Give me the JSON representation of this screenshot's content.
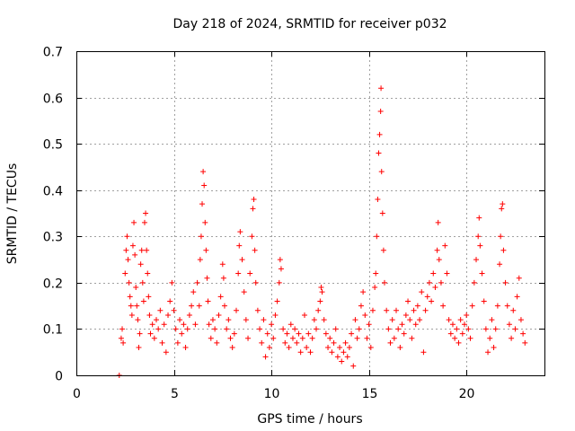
{
  "chart_data": {
    "type": "scatter",
    "title": "Day 218 of 2024, SRMTID for receiver p032",
    "xlabel": "GPS time / hours",
    "ylabel": "SRMTID / TECUs",
    "xlim": [
      0,
      24
    ],
    "ylim": [
      0,
      0.7
    ],
    "x_ticks": [
      0,
      5,
      10,
      15,
      20
    ],
    "x_tick_labels": [
      "0",
      "5",
      "10",
      "15",
      "20"
    ],
    "y_ticks": [
      0,
      0.1,
      0.2,
      0.3,
      0.4,
      0.5,
      0.6,
      0.7
    ],
    "y_tick_labels": [
      "0",
      "0.1",
      "0.2",
      "0.3",
      "0.4",
      "0.5",
      "0.6",
      "0.7"
    ],
    "grid": true,
    "marker": "plus",
    "color": "#ff0000",
    "series": [
      {
        "name": "SRMTID",
        "points": [
          [
            2.2,
            0.0
          ],
          [
            2.3,
            0.08
          ],
          [
            2.35,
            0.1
          ],
          [
            2.4,
            0.07
          ],
          [
            2.5,
            0.22
          ],
          [
            2.55,
            0.27
          ],
          [
            2.6,
            0.3
          ],
          [
            2.65,
            0.25
          ],
          [
            2.7,
            0.2
          ],
          [
            2.75,
            0.17
          ],
          [
            2.8,
            0.15
          ],
          [
            2.85,
            0.13
          ],
          [
            2.9,
            0.28
          ],
          [
            2.95,
            0.33
          ],
          [
            3.0,
            0.26
          ],
          [
            3.05,
            0.19
          ],
          [
            3.1,
            0.15
          ],
          [
            3.15,
            0.12
          ],
          [
            3.2,
            0.06
          ],
          [
            3.25,
            0.09
          ],
          [
            3.3,
            0.24
          ],
          [
            3.35,
            0.27
          ],
          [
            3.4,
            0.2
          ],
          [
            3.45,
            0.16
          ],
          [
            3.5,
            0.33
          ],
          [
            3.55,
            0.35
          ],
          [
            3.6,
            0.27
          ],
          [
            3.65,
            0.22
          ],
          [
            3.7,
            0.17
          ],
          [
            3.75,
            0.13
          ],
          [
            3.8,
            0.09
          ],
          [
            3.9,
            0.11
          ],
          [
            4.0,
            0.08
          ],
          [
            4.1,
            0.12
          ],
          [
            4.2,
            0.1
          ],
          [
            4.3,
            0.14
          ],
          [
            4.4,
            0.07
          ],
          [
            4.5,
            0.11
          ],
          [
            4.6,
            0.05
          ],
          [
            4.7,
            0.13
          ],
          [
            4.8,
            0.16
          ],
          [
            4.9,
            0.2
          ],
          [
            5.0,
            0.14
          ],
          [
            5.1,
            0.1
          ],
          [
            5.2,
            0.07
          ],
          [
            5.3,
            0.12
          ],
          [
            5.4,
            0.09
          ],
          [
            5.5,
            0.11
          ],
          [
            5.6,
            0.06
          ],
          [
            5.7,
            0.1
          ],
          [
            5.8,
            0.13
          ],
          [
            5.9,
            0.15
          ],
          [
            6.0,
            0.18
          ],
          [
            6.1,
            0.11
          ],
          [
            6.2,
            0.2
          ],
          [
            6.3,
            0.15
          ],
          [
            6.35,
            0.25
          ],
          [
            6.4,
            0.3
          ],
          [
            6.45,
            0.37
          ],
          [
            6.5,
            0.44
          ],
          [
            6.55,
            0.41
          ],
          [
            6.6,
            0.33
          ],
          [
            6.65,
            0.27
          ],
          [
            6.7,
            0.21
          ],
          [
            6.75,
            0.16
          ],
          [
            6.8,
            0.11
          ],
          [
            6.9,
            0.08
          ],
          [
            7.0,
            0.12
          ],
          [
            7.1,
            0.1
          ],
          [
            7.2,
            0.07
          ],
          [
            7.3,
            0.13
          ],
          [
            7.4,
            0.17
          ],
          [
            7.5,
            0.24
          ],
          [
            7.55,
            0.21
          ],
          [
            7.6,
            0.15
          ],
          [
            7.7,
            0.1
          ],
          [
            7.8,
            0.12
          ],
          [
            7.9,
            0.08
          ],
          [
            8.0,
            0.06
          ],
          [
            8.1,
            0.09
          ],
          [
            8.2,
            0.14
          ],
          [
            8.3,
            0.22
          ],
          [
            8.35,
            0.28
          ],
          [
            8.4,
            0.31
          ],
          [
            8.5,
            0.25
          ],
          [
            8.6,
            0.18
          ],
          [
            8.7,
            0.12
          ],
          [
            8.8,
            0.08
          ],
          [
            8.9,
            0.22
          ],
          [
            9.0,
            0.3
          ],
          [
            9.05,
            0.36
          ],
          [
            9.1,
            0.38
          ],
          [
            9.15,
            0.27
          ],
          [
            9.2,
            0.2
          ],
          [
            9.3,
            0.14
          ],
          [
            9.4,
            0.1
          ],
          [
            9.5,
            0.07
          ],
          [
            9.6,
            0.12
          ],
          [
            9.7,
            0.04
          ],
          [
            9.8,
            0.09
          ],
          [
            9.9,
            0.06
          ],
          [
            10.0,
            0.11
          ],
          [
            10.1,
            0.08
          ],
          [
            10.2,
            0.13
          ],
          [
            10.3,
            0.16
          ],
          [
            10.4,
            0.2
          ],
          [
            10.45,
            0.25
          ],
          [
            10.5,
            0.23
          ],
          [
            10.6,
            0.1
          ],
          [
            10.7,
            0.07
          ],
          [
            10.8,
            0.09
          ],
          [
            10.9,
            0.06
          ],
          [
            11.0,
            0.11
          ],
          [
            11.1,
            0.08
          ],
          [
            11.2,
            0.1
          ],
          [
            11.3,
            0.07
          ],
          [
            11.4,
            0.09
          ],
          [
            11.5,
            0.05
          ],
          [
            11.6,
            0.08
          ],
          [
            11.7,
            0.13
          ],
          [
            11.8,
            0.06
          ],
          [
            11.9,
            0.09
          ],
          [
            12.0,
            0.05
          ],
          [
            12.1,
            0.08
          ],
          [
            12.2,
            0.12
          ],
          [
            12.3,
            0.1
          ],
          [
            12.4,
            0.14
          ],
          [
            12.5,
            0.16
          ],
          [
            12.55,
            0.19
          ],
          [
            12.6,
            0.18
          ],
          [
            12.7,
            0.12
          ],
          [
            12.8,
            0.09
          ],
          [
            12.9,
            0.06
          ],
          [
            13.0,
            0.08
          ],
          [
            13.1,
            0.05
          ],
          [
            13.2,
            0.07
          ],
          [
            13.3,
            0.1
          ],
          [
            13.4,
            0.04
          ],
          [
            13.5,
            0.06
          ],
          [
            13.6,
            0.03
          ],
          [
            13.7,
            0.05
          ],
          [
            13.8,
            0.07
          ],
          [
            13.9,
            0.04
          ],
          [
            14.0,
            0.06
          ],
          [
            14.1,
            0.09
          ],
          [
            14.2,
            0.02
          ],
          [
            14.3,
            0.12
          ],
          [
            14.4,
            0.08
          ],
          [
            14.5,
            0.1
          ],
          [
            14.6,
            0.15
          ],
          [
            14.7,
            0.18
          ],
          [
            14.8,
            0.13
          ],
          [
            14.9,
            0.08
          ],
          [
            15.0,
            0.11
          ],
          [
            15.1,
            0.06
          ],
          [
            15.2,
            0.14
          ],
          [
            15.3,
            0.19
          ],
          [
            15.35,
            0.22
          ],
          [
            15.4,
            0.3
          ],
          [
            15.45,
            0.38
          ],
          [
            15.5,
            0.48
          ],
          [
            15.55,
            0.52
          ],
          [
            15.6,
            0.57
          ],
          [
            15.62,
            0.62
          ],
          [
            15.65,
            0.44
          ],
          [
            15.7,
            0.35
          ],
          [
            15.75,
            0.27
          ],
          [
            15.8,
            0.2
          ],
          [
            15.9,
            0.14
          ],
          [
            16.0,
            0.1
          ],
          [
            16.1,
            0.07
          ],
          [
            16.2,
            0.12
          ],
          [
            16.3,
            0.08
          ],
          [
            16.4,
            0.14
          ],
          [
            16.5,
            0.1
          ],
          [
            16.6,
            0.06
          ],
          [
            16.7,
            0.11
          ],
          [
            16.8,
            0.09
          ],
          [
            16.9,
            0.13
          ],
          [
            17.0,
            0.16
          ],
          [
            17.1,
            0.12
          ],
          [
            17.2,
            0.08
          ],
          [
            17.3,
            0.14
          ],
          [
            17.4,
            0.11
          ],
          [
            17.5,
            0.15
          ],
          [
            17.6,
            0.12
          ],
          [
            17.7,
            0.18
          ],
          [
            17.8,
            0.05
          ],
          [
            17.9,
            0.14
          ],
          [
            18.0,
            0.17
          ],
          [
            18.1,
            0.2
          ],
          [
            18.2,
            0.16
          ],
          [
            18.3,
            0.22
          ],
          [
            18.4,
            0.19
          ],
          [
            18.5,
            0.27
          ],
          [
            18.55,
            0.33
          ],
          [
            18.6,
            0.25
          ],
          [
            18.7,
            0.2
          ],
          [
            18.8,
            0.15
          ],
          [
            18.9,
            0.28
          ],
          [
            19.0,
            0.22
          ],
          [
            19.1,
            0.12
          ],
          [
            19.2,
            0.09
          ],
          [
            19.3,
            0.11
          ],
          [
            19.4,
            0.08
          ],
          [
            19.5,
            0.1
          ],
          [
            19.6,
            0.07
          ],
          [
            19.7,
            0.12
          ],
          [
            19.8,
            0.09
          ],
          [
            19.9,
            0.11
          ],
          [
            20.0,
            0.13
          ],
          [
            20.1,
            0.1
          ],
          [
            20.2,
            0.08
          ],
          [
            20.3,
            0.15
          ],
          [
            20.4,
            0.2
          ],
          [
            20.5,
            0.25
          ],
          [
            20.6,
            0.3
          ],
          [
            20.65,
            0.34
          ],
          [
            20.7,
            0.28
          ],
          [
            20.8,
            0.22
          ],
          [
            20.9,
            0.16
          ],
          [
            21.0,
            0.1
          ],
          [
            21.1,
            0.05
          ],
          [
            21.2,
            0.08
          ],
          [
            21.3,
            0.12
          ],
          [
            21.4,
            0.06
          ],
          [
            21.5,
            0.1
          ],
          [
            21.6,
            0.15
          ],
          [
            21.7,
            0.24
          ],
          [
            21.75,
            0.3
          ],
          [
            21.8,
            0.36
          ],
          [
            21.85,
            0.37
          ],
          [
            21.9,
            0.27
          ],
          [
            22.0,
            0.2
          ],
          [
            22.1,
            0.15
          ],
          [
            22.2,
            0.11
          ],
          [
            22.3,
            0.08
          ],
          [
            22.4,
            0.14
          ],
          [
            22.5,
            0.1
          ],
          [
            22.6,
            0.17
          ],
          [
            22.7,
            0.21
          ],
          [
            22.8,
            0.12
          ],
          [
            22.9,
            0.09
          ],
          [
            23.0,
            0.07
          ]
        ]
      }
    ]
  }
}
